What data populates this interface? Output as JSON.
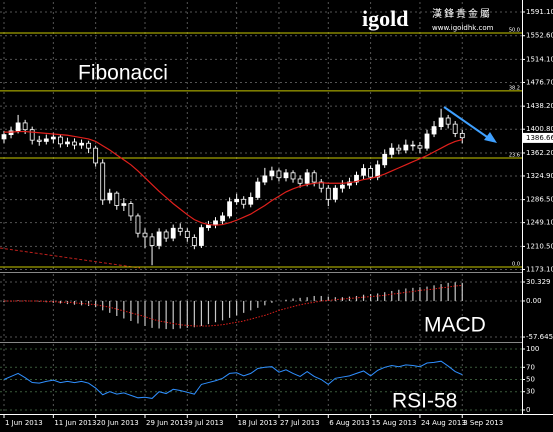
{
  "logo": {
    "brand": "igold",
    "chinese": "漢鋒貴金屬",
    "url": "www.igoldhk.com"
  },
  "chart_data": [
    {
      "type": "candlestick",
      "title": "Fibonacci",
      "categories": [
        "1 Jun 2013",
        null,
        null,
        null,
        null,
        null,
        null,
        "11 Jun 2013",
        null,
        null,
        null,
        null,
        null,
        "20 Jun 2013",
        null,
        null,
        null,
        null,
        null,
        null,
        "29 Jun 2013",
        null,
        null,
        null,
        null,
        null,
        "9 Jul 2013",
        null,
        null,
        null,
        null,
        null,
        null,
        "18 Jul 2013",
        null,
        null,
        null,
        null,
        null,
        "27 Jul 2013",
        null,
        null,
        null,
        null,
        null,
        null,
        "6 Aug 2013",
        null,
        null,
        null,
        null,
        null,
        "15 Aug 2013",
        null,
        null,
        null,
        null,
        null,
        null,
        "24 Aug 2013",
        null,
        null,
        null,
        null,
        null,
        "3 Sep 2013"
      ],
      "open": [
        1385,
        1392,
        1398,
        1411,
        1400,
        1383,
        1381,
        1385,
        1388,
        1377,
        1380,
        1375,
        1378,
        1370,
        1346,
        1286,
        1297,
        1277,
        1280,
        1260,
        1232,
        1226,
        1212,
        1234,
        1224,
        1240,
        1235,
        1225,
        1212,
        1241,
        1245,
        1252,
        1260,
        1283,
        1287,
        1279,
        1290,
        1315,
        1325,
        1333,
        1322,
        1330,
        1320,
        1313,
        1330,
        1315,
        1305,
        1287,
        1305,
        1310,
        1315,
        1326,
        1337,
        1323,
        1343,
        1360,
        1370,
        1367,
        1375,
        1374,
        1370,
        1393,
        1405,
        1419,
        1409,
        1394
      ],
      "high": [
        1398,
        1405,
        1424,
        1416,
        1405,
        1390,
        1392,
        1395,
        1393,
        1387,
        1386,
        1384,
        1382,
        1374,
        1352,
        1304,
        1300,
        1289,
        1284,
        1264,
        1240,
        1232,
        1240,
        1238,
        1246,
        1248,
        1240,
        1230,
        1246,
        1252,
        1258,
        1266,
        1290,
        1296,
        1292,
        1298,
        1322,
        1338,
        1340,
        1337,
        1336,
        1334,
        1326,
        1336,
        1334,
        1320,
        1310,
        1310,
        1318,
        1322,
        1332,
        1344,
        1342,
        1350,
        1368,
        1378,
        1376,
        1384,
        1382,
        1380,
        1400,
        1414,
        1434,
        1424,
        1414,
        1400
      ],
      "low": [
        1378,
        1386,
        1394,
        1393,
        1376,
        1374,
        1376,
        1378,
        1371,
        1372,
        1368,
        1369,
        1362,
        1340,
        1278,
        1280,
        1270,
        1268,
        1252,
        1225,
        1208,
        1180,
        1206,
        1218,
        1219,
        1228,
        1218,
        1206,
        1208,
        1236,
        1240,
        1246,
        1256,
        1278,
        1272,
        1274,
        1286,
        1310,
        1318,
        1316,
        1316,
        1314,
        1306,
        1308,
        1308,
        1298,
        1276,
        1282,
        1298,
        1304,
        1310,
        1320,
        1318,
        1318,
        1338,
        1354,
        1360,
        1362,
        1366,
        1362,
        1366,
        1388,
        1400,
        1402,
        1388,
        1378
      ],
      "close": [
        1392,
        1398,
        1411,
        1400,
        1383,
        1381,
        1385,
        1388,
        1377,
        1380,
        1375,
        1378,
        1370,
        1346,
        1286,
        1297,
        1277,
        1280,
        1260,
        1232,
        1226,
        1212,
        1234,
        1224,
        1240,
        1235,
        1225,
        1212,
        1241,
        1245,
        1252,
        1260,
        1283,
        1287,
        1279,
        1290,
        1315,
        1325,
        1333,
        1322,
        1330,
        1320,
        1313,
        1330,
        1315,
        1305,
        1287,
        1305,
        1310,
        1315,
        1326,
        1337,
        1323,
        1343,
        1360,
        1370,
        1367,
        1375,
        1374,
        1370,
        1393,
        1405,
        1419,
        1409,
        1394,
        1387
      ],
      "color": "#ffffff",
      "ma": {
        "color": "#e0201c",
        "values": [
          1396,
          1396,
          1397,
          1397,
          1396,
          1395,
          1394,
          1393,
          1392,
          1391,
          1389,
          1387,
          1385,
          1381,
          1374,
          1367,
          1359,
          1351,
          1343,
          1333,
          1322,
          1311,
          1300,
          1290,
          1280,
          1271,
          1262,
          1254,
          1249,
          1246,
          1245,
          1246,
          1249,
          1253,
          1258,
          1263,
          1270,
          1277,
          1285,
          1292,
          1299,
          1304,
          1308,
          1311,
          1313,
          1314,
          1313,
          1313,
          1313,
          1314,
          1316,
          1319,
          1321,
          1324,
          1328,
          1333,
          1338,
          1343,
          1348,
          1353,
          1358,
          1364,
          1370,
          1376,
          1381,
          1384
        ]
      },
      "fib_color": "#c8c800",
      "fib_levels": [
        {
          "value": 1557,
          "label": "50.0"
        },
        {
          "value": 1463,
          "label": "38.2"
        },
        {
          "value": 1354,
          "label": "23.6"
        },
        {
          "value": 1177,
          "label": "0.0"
        }
      ],
      "current_price": 1386.66,
      "ylim": [
        1170.6,
        1607.3
      ],
      "yticks": [
        {
          "value": 1591.1,
          "label": "1591.10"
        },
        {
          "value": 1552.6,
          "label": "1552.60"
        },
        {
          "value": 1514.1,
          "label": "1514.10"
        },
        {
          "value": 1476.7,
          "label": "1476.70"
        },
        {
          "value": 1438.2,
          "label": "1438.20"
        },
        {
          "value": 1400.8,
          "label": "1400.80"
        },
        {
          "value": 1362.2,
          "label": "1362.20"
        },
        {
          "value": 1324.9,
          "label": "1324.90"
        },
        {
          "value": 1286.5,
          "label": "1286.50"
        },
        {
          "value": 1249.1,
          "label": "1249.10"
        },
        {
          "value": 1210.5,
          "label": "1210.50"
        },
        {
          "value": 1173.1,
          "label": "1173.10"
        }
      ],
      "grid": true
    },
    {
      "type": "bar",
      "title": "MACD",
      "color": "#c8c8c8",
      "values": [
        -2,
        -1,
        1,
        1,
        0,
        -1,
        -2,
        -3,
        -4,
        -5,
        -6,
        -7,
        -8,
        -10,
        -15,
        -19,
        -24,
        -28,
        -32,
        -36,
        -40,
        -43,
        -44,
        -45,
        -45,
        -44,
        -43,
        -42,
        -40,
        -37,
        -34,
        -31,
        -27,
        -23,
        -19,
        -15,
        -11,
        -7,
        -3,
        0,
        2,
        4,
        5,
        6,
        8,
        8,
        7,
        6,
        6,
        7,
        8,
        10,
        11,
        12,
        14,
        16,
        18,
        20,
        21,
        22,
        23,
        25,
        27,
        29,
        30,
        29
      ],
      "signal": {
        "color": "#e0201c",
        "values": [
          0,
          0,
          0,
          0,
          0,
          0,
          -1,
          -1,
          -2,
          -2,
          -3,
          -4,
          -5,
          -6,
          -8,
          -10,
          -13,
          -16,
          -19,
          -22,
          -25,
          -29,
          -32,
          -34,
          -36,
          -38,
          -39,
          -40,
          -40,
          -40,
          -39,
          -38,
          -36,
          -34,
          -32,
          -29,
          -26,
          -23,
          -19,
          -15,
          -12,
          -9,
          -6,
          -4,
          -2,
          0,
          1,
          2,
          3,
          4,
          5,
          6,
          7,
          8,
          9,
          11,
          12,
          14,
          15,
          17,
          18,
          19,
          21,
          22,
          24,
          25
        ]
      },
      "ylim": [
        -64,
        43.1
      ],
      "yticks": [
        30.329,
        {
          "value": 0,
          "label": "0.00"
        },
        -57.645
      ]
    },
    {
      "type": "line",
      "title": "RSI-58",
      "color": "#2f8fff",
      "values": [
        50,
        55,
        60,
        53,
        45,
        44,
        47,
        49,
        45,
        47,
        45,
        47,
        44,
        36,
        25,
        30,
        26,
        28,
        24,
        20,
        21,
        19,
        30,
        27,
        34,
        32,
        29,
        26,
        42,
        45,
        48,
        52,
        60,
        61,
        56,
        60,
        68,
        70,
        71,
        62,
        66,
        60,
        55,
        63,
        55,
        50,
        42,
        52,
        54,
        56,
        60,
        64,
        56,
        65,
        70,
        73,
        71,
        74,
        73,
        71,
        77,
        78,
        80,
        72,
        63,
        58
      ],
      "ylim": [
        -4.9,
        108.2
      ],
      "yticks": [
        100,
        70,
        50,
        30,
        0
      ]
    }
  ]
}
